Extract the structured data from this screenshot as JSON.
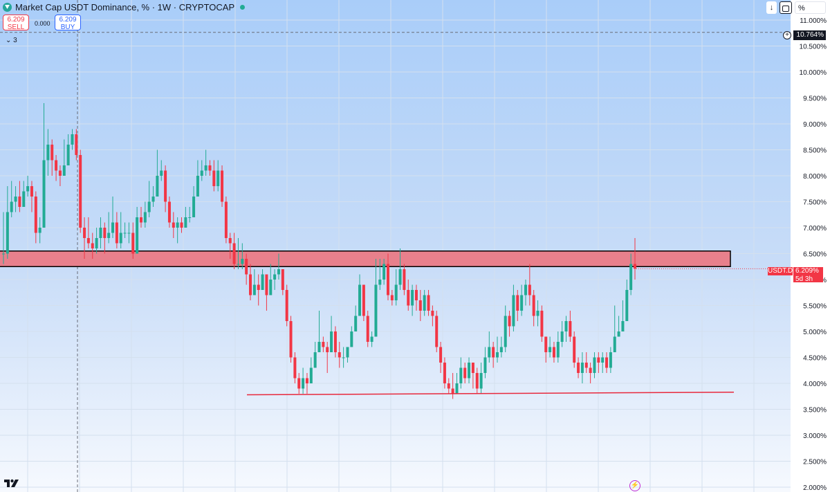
{
  "header": {
    "title": "Market Cap USDT Dominance, % · 1W · CRYPTOCAP",
    "sell_price": "6.209",
    "sell_label": "SELL",
    "spread": "0.000",
    "buy_price": "6.209",
    "buy_label": "BUY",
    "indicators_count": "3"
  },
  "top_right": {
    "scale_mode": "%"
  },
  "crosshair_label": "10.764%",
  "last_price_label": {
    "symbol": "USDT.D",
    "price": "6.209%",
    "countdown": "5d 3h"
  },
  "colors": {
    "up": "#22ab94",
    "down": "#f23645",
    "zone_fill": "#e8808c",
    "zone_border": "#000000",
    "support_line": "#e8283c",
    "grid": "#d4e0ee"
  },
  "chart_data": {
    "type": "candlestick",
    "title": "Market Cap USDT Dominance, % · 1W · CRYPTOCAP",
    "symbol": "USDT.D",
    "interval": "1W",
    "y_unit": "%",
    "y_ticks": [
      "2.000%",
      "2.500%",
      "3.000%",
      "3.500%",
      "4.000%",
      "4.500%",
      "5.000%",
      "5.500%",
      "6.000%",
      "6.500%",
      "7.000%",
      "7.500%",
      "8.000%",
      "8.500%",
      "9.000%",
      "9.500%",
      "10.000%",
      "10.500%",
      "11.000%"
    ],
    "ylim": [
      2.0,
      11.3
    ],
    "last_price": 6.209,
    "candles": [
      [
        6.5,
        6.5,
        7.3,
        6.3
      ],
      [
        6.5,
        7.3,
        7.8,
        6.4
      ],
      [
        7.3,
        7.5,
        7.9,
        7.2
      ],
      [
        7.5,
        7.6,
        7.8,
        7.3
      ],
      [
        7.6,
        7.4,
        7.9,
        7.3
      ],
      [
        7.4,
        7.7,
        7.9,
        7.4
      ],
      [
        7.7,
        7.8,
        8.0,
        7.6
      ],
      [
        7.8,
        7.6,
        7.9,
        7.3
      ],
      [
        7.6,
        6.9,
        7.7,
        6.7
      ],
      [
        6.9,
        7.0,
        7.2,
        6.7
      ],
      [
        7.0,
        8.3,
        9.4,
        7.0
      ],
      [
        8.3,
        8.6,
        8.9,
        8.0
      ],
      [
        8.6,
        8.3,
        8.7,
        8.0
      ],
      [
        8.3,
        8.1,
        8.4,
        7.9
      ],
      [
        8.1,
        8.0,
        8.2,
        7.8
      ],
      [
        8.0,
        8.2,
        8.7,
        8.0
      ],
      [
        8.2,
        8.6,
        8.8,
        8.3
      ],
      [
        8.6,
        8.8,
        8.9,
        8.5
      ],
      [
        8.8,
        8.4,
        8.9,
        8.3
      ],
      [
        8.4,
        7.0,
        8.5,
        6.9
      ],
      [
        7.0,
        6.8,
        7.2,
        6.4
      ],
      [
        6.8,
        6.7,
        7.2,
        6.6
      ],
      [
        6.7,
        6.6,
        6.9,
        6.4
      ],
      [
        6.6,
        6.8,
        7.0,
        6.5
      ],
      [
        6.8,
        7.0,
        7.2,
        6.6
      ],
      [
        7.0,
        6.8,
        7.1,
        6.5
      ],
      [
        6.8,
        6.9,
        7.3,
        6.7
      ],
      [
        6.9,
        7.1,
        7.6,
        6.8
      ],
      [
        7.1,
        6.7,
        7.3,
        6.6
      ],
      [
        6.7,
        6.9,
        7.3,
        6.6
      ],
      [
        6.9,
        6.9,
        7.1,
        6.8
      ],
      [
        6.9,
        6.9,
        7.1,
        6.7
      ],
      [
        6.9,
        6.5,
        7.1,
        6.4
      ],
      [
        6.5,
        7.2,
        7.4,
        6.6
      ],
      [
        7.2,
        7.1,
        7.4,
        7.0
      ],
      [
        7.1,
        7.3,
        7.5,
        7.0
      ],
      [
        7.3,
        7.5,
        7.9,
        7.2
      ],
      [
        7.5,
        7.6,
        7.8,
        7.4
      ],
      [
        7.6,
        8.0,
        8.5,
        7.6
      ],
      [
        8.0,
        8.1,
        8.3,
        7.9
      ],
      [
        8.1,
        7.5,
        8.2,
        7.3
      ],
      [
        7.5,
        7.1,
        7.6,
        7.0
      ],
      [
        7.1,
        7.0,
        7.3,
        6.8
      ],
      [
        7.0,
        7.1,
        7.2,
        6.7
      ],
      [
        7.1,
        7.0,
        7.2,
        6.9
      ],
      [
        7.0,
        7.2,
        7.4,
        7.0
      ],
      [
        7.2,
        7.2,
        7.4,
        7.1
      ],
      [
        7.2,
        7.6,
        7.8,
        7.2
      ],
      [
        7.6,
        8.0,
        8.3,
        7.6
      ],
      [
        8.0,
        8.1,
        8.3,
        7.9
      ],
      [
        8.1,
        8.2,
        8.5,
        8.0
      ],
      [
        8.2,
        8.1,
        8.3,
        8.0
      ],
      [
        8.1,
        7.8,
        8.3,
        7.7
      ],
      [
        7.8,
        8.1,
        8.3,
        7.7
      ],
      [
        8.1,
        7.5,
        8.2,
        7.4
      ],
      [
        7.5,
        6.8,
        7.6,
        6.7
      ],
      [
        6.8,
        6.7,
        6.9,
        6.4
      ],
      [
        6.7,
        6.3,
        6.9,
        6.2
      ],
      [
        6.3,
        6.3,
        6.8,
        6.2
      ],
      [
        6.3,
        6.4,
        6.7,
        6.2
      ],
      [
        6.4,
        6.1,
        6.5,
        5.9
      ],
      [
        6.1,
        5.7,
        6.3,
        5.6
      ],
      [
        5.7,
        5.9,
        6.2,
        5.8
      ],
      [
        5.9,
        5.8,
        6.1,
        5.5
      ],
      [
        5.8,
        6.1,
        6.2,
        5.8
      ],
      [
        6.1,
        5.7,
        6.1,
        5.4
      ],
      [
        5.7,
        6.0,
        6.3,
        5.7
      ],
      [
        6.0,
        6.1,
        6.2,
        5.8
      ],
      [
        6.1,
        6.2,
        6.5,
        6.0
      ],
      [
        6.2,
        5.8,
        6.2,
        5.7
      ],
      [
        5.8,
        5.2,
        5.9,
        5.1
      ],
      [
        5.2,
        4.5,
        5.3,
        4.4
      ],
      [
        4.5,
        4.1,
        4.6,
        4.0
      ],
      [
        4.1,
        3.9,
        4.2,
        3.8
      ],
      [
        3.9,
        4.1,
        4.3,
        3.8
      ],
      [
        4.1,
        4.0,
        4.2,
        3.8
      ],
      [
        4.0,
        4.3,
        4.5,
        4.0
      ],
      [
        4.3,
        4.6,
        4.8,
        4.3
      ],
      [
        4.6,
        4.8,
        5.4,
        4.7
      ],
      [
        4.8,
        4.7,
        4.9,
        4.6
      ],
      [
        4.7,
        4.6,
        4.8,
        4.2
      ],
      [
        4.6,
        5.0,
        5.3,
        4.9
      ],
      [
        5.0,
        4.6,
        5.1,
        4.5
      ],
      [
        4.6,
        4.5,
        4.8,
        4.3
      ],
      [
        4.5,
        4.5,
        4.7,
        4.3
      ],
      [
        4.5,
        4.7,
        4.7,
        4.4
      ],
      [
        4.7,
        5.0,
        5.1,
        4.8
      ],
      [
        5.0,
        5.3,
        5.5,
        5.0
      ],
      [
        5.3,
        5.9,
        6.1,
        5.3
      ],
      [
        5.9,
        5.3,
        5.9,
        5.2
      ],
      [
        5.3,
        4.8,
        5.4,
        4.7
      ],
      [
        4.8,
        4.9,
        5.0,
        4.7
      ],
      [
        4.9,
        5.9,
        6.4,
        4.9
      ],
      [
        5.9,
        6.0,
        6.4,
        5.8
      ],
      [
        6.0,
        6.3,
        6.4,
        5.9
      ],
      [
        6.3,
        5.7,
        6.5,
        5.6
      ],
      [
        5.7,
        5.6,
        5.8,
        5.5
      ],
      [
        5.6,
        5.9,
        6.2,
        5.5
      ],
      [
        5.9,
        6.2,
        6.6,
        5.8
      ],
      [
        6.2,
        5.8,
        6.3,
        5.7
      ],
      [
        5.8,
        5.5,
        6.0,
        5.4
      ],
      [
        5.5,
        5.8,
        5.9,
        5.3
      ],
      [
        5.8,
        5.6,
        5.9,
        5.4
      ],
      [
        5.6,
        5.4,
        5.8,
        5.2
      ],
      [
        5.4,
        5.7,
        5.8,
        5.3
      ],
      [
        5.7,
        5.4,
        5.8,
        5.3
      ],
      [
        5.4,
        5.3,
        5.5,
        5.1
      ],
      [
        5.3,
        4.7,
        5.4,
        4.6
      ],
      [
        4.7,
        4.4,
        4.8,
        4.2
      ],
      [
        4.4,
        4.0,
        4.5,
        3.9
      ],
      [
        4.0,
        3.9,
        4.1,
        3.8
      ],
      [
        3.9,
        3.8,
        4.2,
        3.7
      ],
      [
        3.8,
        4.0,
        4.2,
        3.8
      ],
      [
        4.0,
        4.3,
        4.5,
        3.9
      ],
      [
        4.3,
        4.1,
        4.4,
        4.0
      ],
      [
        4.1,
        4.4,
        4.5,
        4.0
      ],
      [
        4.4,
        4.2,
        4.4,
        3.9
      ],
      [
        4.2,
        3.9,
        4.3,
        3.8
      ],
      [
        3.9,
        4.2,
        4.4,
        3.8
      ],
      [
        4.2,
        4.5,
        4.7,
        4.1
      ],
      [
        4.5,
        4.7,
        5.0,
        4.4
      ],
      [
        4.7,
        4.5,
        4.8,
        4.3
      ],
      [
        4.5,
        4.6,
        4.9,
        4.4
      ],
      [
        4.6,
        4.7,
        4.9,
        4.5
      ],
      [
        4.7,
        5.3,
        5.5,
        4.6
      ],
      [
        5.3,
        5.1,
        5.4,
        4.9
      ],
      [
        5.1,
        5.7,
        5.9,
        5.0
      ],
      [
        5.7,
        5.4,
        5.8,
        5.2
      ],
      [
        5.4,
        5.7,
        5.9,
        5.3
      ],
      [
        5.7,
        5.9,
        6.0,
        5.5
      ],
      [
        5.9,
        5.7,
        6.3,
        5.5
      ],
      [
        5.7,
        5.3,
        5.8,
        5.1
      ],
      [
        5.3,
        5.4,
        5.6,
        5.1
      ],
      [
        5.4,
        4.9,
        5.5,
        4.8
      ],
      [
        4.9,
        4.6,
        4.9,
        4.4
      ],
      [
        4.6,
        4.7,
        4.9,
        4.5
      ],
      [
        4.7,
        4.5,
        4.8,
        4.4
      ],
      [
        4.5,
        4.8,
        5.0,
        4.4
      ],
      [
        4.8,
        5.0,
        5.2,
        4.7
      ],
      [
        5.0,
        5.2,
        5.3,
        4.8
      ],
      [
        5.2,
        4.9,
        5.4,
        4.8
      ],
      [
        4.9,
        4.4,
        5.0,
        4.3
      ],
      [
        4.4,
        4.2,
        4.5,
        4.1
      ],
      [
        4.2,
        4.4,
        4.6,
        4.0
      ],
      [
        4.4,
        4.3,
        4.6,
        4.2
      ],
      [
        4.3,
        4.2,
        4.4,
        4.0
      ],
      [
        4.2,
        4.5,
        4.6,
        4.1
      ],
      [
        4.5,
        4.4,
        4.6,
        4.2
      ],
      [
        4.4,
        4.5,
        4.6,
        4.2
      ],
      [
        4.5,
        4.3,
        4.6,
        4.2
      ],
      [
        4.3,
        4.6,
        4.7,
        4.2
      ],
      [
        4.6,
        4.9,
        5.5,
        4.8
      ],
      [
        4.9,
        5.0,
        5.3,
        4.9
      ],
      [
        5.0,
        5.2,
        5.6,
        5.0
      ],
      [
        5.2,
        5.8,
        6.0,
        5.2
      ],
      [
        5.8,
        6.3,
        6.5,
        5.7
      ],
      [
        6.3,
        6.209,
        6.8,
        6.0
      ]
    ],
    "zone": {
      "type": "rectangle",
      "y_top": 6.55,
      "y_bottom": 6.25
    },
    "support_line": {
      "type": "trendline",
      "y_start": 3.78,
      "y_end": 3.83
    }
  }
}
